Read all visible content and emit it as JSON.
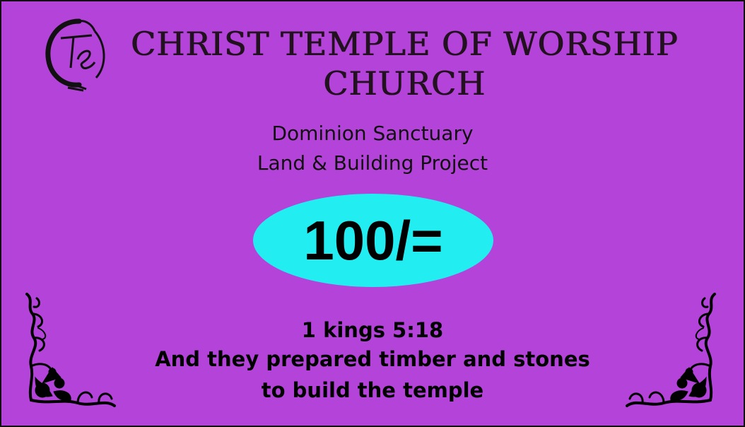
{
  "card": {
    "background_color": "#b443d9",
    "oval_color": "#22eef2",
    "logo_icon": "ctw-monogram-icon",
    "ornament_icon": "floral-corner-ornament-icon"
  },
  "title": {
    "line1": "CHRIST TEMPLE OF WORSHIP",
    "line2": "CHURCH"
  },
  "subtitle": {
    "line1": "Dominion Sanctuary",
    "line2": "Land & Building Project"
  },
  "amount": "100/=",
  "verse": {
    "reference": "1 kings 5:18",
    "line1": "And they prepared timber and stones",
    "line2": "to build the temple"
  }
}
